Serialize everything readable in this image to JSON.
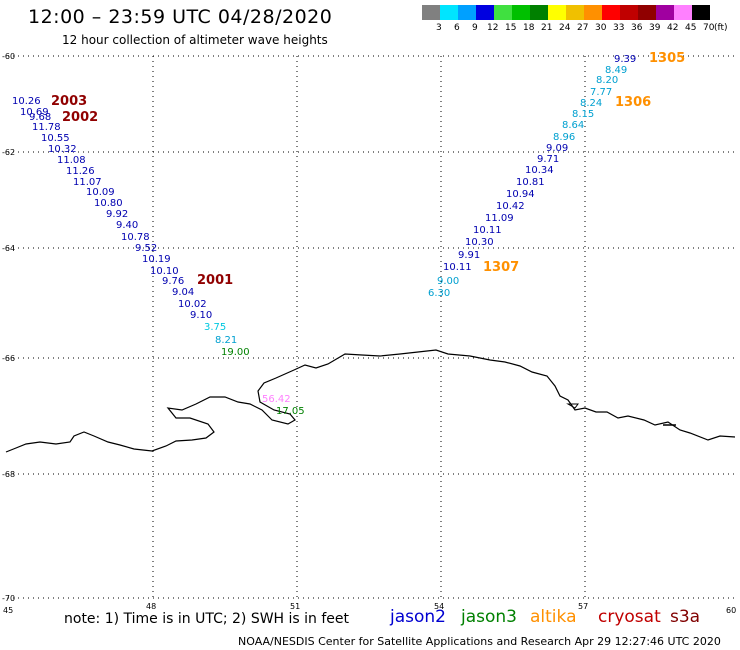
{
  "header": {
    "title": "12:00 – 23:59 UTC 04/28/2020",
    "subtitle": "12 hour collection of altimeter wave heights"
  },
  "legend": {
    "colors": [
      "#808080",
      "#00e5ff",
      "#00a0ff",
      "#0000e0",
      "#40e040",
      "#00c000",
      "#008000",
      "#ffff00",
      "#f0c000",
      "#ff9000",
      "#ff0000",
      "#c00000",
      "#900000",
      "#a000a0",
      "#ff80ff",
      "#000000"
    ],
    "labels": [
      "3",
      "6",
      "9",
      "12",
      "15",
      "18",
      "21",
      "24",
      "27",
      "30",
      "33",
      "36",
      "39",
      "42",
      "45",
      "70"
    ],
    "unit": "(ft)"
  },
  "axes": {
    "lon_labels": [
      "45",
      "48",
      "51",
      "54",
      "57",
      "60"
    ],
    "lat_labels": [
      "-60",
      "-62",
      "-64",
      "-66",
      "-68",
      "-70"
    ]
  },
  "tracks": {
    "track_2003_2002": {
      "labels": [
        {
          "text": "2003",
          "color": "#900000"
        },
        {
          "text": "2002",
          "color": "#900000"
        },
        {
          "text": "2001",
          "color": "#900000"
        }
      ],
      "values": [
        "10.26",
        "10.69",
        "9.68",
        "11.78",
        "10.55",
        "10.32",
        "11.08",
        "11.26",
        "11.07",
        "10.09",
        "10.80",
        "9.92",
        "9.40",
        "10.78",
        "9.52",
        "10.19",
        "10.10",
        "9.76",
        "9.04",
        "10.02",
        "9.10",
        "3.75",
        "8.21",
        "19.00"
      ],
      "colors": [
        "#0000b0",
        "#0000b0",
        "#0000b0",
        "#0000b0",
        "#0000b0",
        "#0000b0",
        "#0000b0",
        "#0000b0",
        "#0000b0",
        "#0000b0",
        "#0000b0",
        "#0000b0",
        "#0000b0",
        "#0000b0",
        "#0000b0",
        "#0000b0",
        "#0000b0",
        "#0000b0",
        "#0000b0",
        "#0000b0",
        "#0000b0",
        "#00c8e0",
        "#00a0d0",
        "#008000"
      ]
    },
    "track_1305": {
      "labels": [
        {
          "text": "1305",
          "color": "#ff9000"
        },
        {
          "text": "1306",
          "color": "#ff9000"
        },
        {
          "text": "1307",
          "color": "#ff9000"
        }
      ],
      "values": [
        "9.39",
        "8.49",
        "8.20",
        "7.77",
        "8.24",
        "8.15",
        "8.64",
        "8.96",
        "9.09",
        "9.71",
        "10.34",
        "10.81",
        "10.94",
        "10.42",
        "11.09",
        "10.11",
        "10.30",
        "9.91",
        "10.11",
        "9.00",
        "6.30"
      ],
      "colors": [
        "#0000b0",
        "#00a0d0",
        "#00a0d0",
        "#00a0d0",
        "#00a0d0",
        "#00a0d0",
        "#00a0d0",
        "#00a0d0",
        "#0000b0",
        "#0000b0",
        "#0000b0",
        "#0000b0",
        "#0000b0",
        "#0000b0",
        "#0000b0",
        "#0000b0",
        "#0000b0",
        "#0000b0",
        "#0000b0",
        "#00a0d0",
        "#00a0d0"
      ]
    },
    "coastal": {
      "values": [
        "56.42",
        "17.05"
      ],
      "colors": [
        "#ff80ff",
        "#008000"
      ]
    }
  },
  "footer": {
    "note": "note:  1) Time is in UTC;  2) SWH is in feet",
    "satellites": [
      {
        "name": "jason2",
        "color": "#0000d0"
      },
      {
        "name": "jason3",
        "color": "#008000"
      },
      {
        "name": "altika",
        "color": "#ff9000"
      },
      {
        "name": "cryosat",
        "color": "#c00000"
      },
      {
        "name": "s3a",
        "color": "#800000"
      }
    ],
    "credit": "NOAA/NESDIS Center for Satellite Applications and Research    Apr 29 12:27:46 UTC 2020"
  }
}
